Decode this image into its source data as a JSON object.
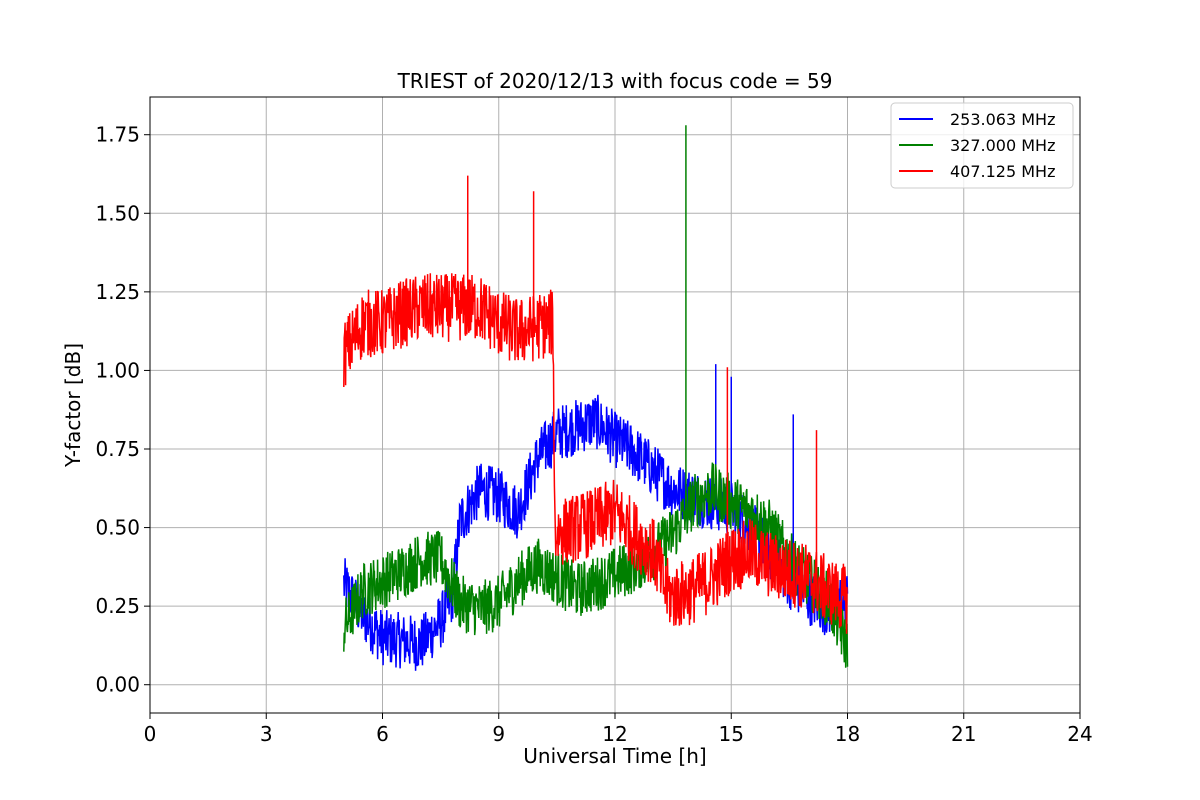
{
  "chart_data": {
    "type": "line",
    "title": "TRIEST of 2020/12/13 with focus code = 59",
    "xlabel": "Universal Time [h]",
    "ylabel": "Y-factor [dB]",
    "xlim": [
      0,
      24
    ],
    "ylim": [
      -0.09,
      1.87
    ],
    "x_ticks": [
      0,
      3,
      6,
      9,
      12,
      15,
      18,
      21,
      24
    ],
    "x_tick_labels": [
      "0",
      "3",
      "6",
      "9",
      "12",
      "15",
      "18",
      "21",
      "24"
    ],
    "y_ticks": [
      0.0,
      0.25,
      0.5,
      0.75,
      1.0,
      1.25,
      1.5,
      1.75
    ],
    "y_tick_labels": [
      "0.00",
      "0.25",
      "0.50",
      "0.75",
      "1.00",
      "1.25",
      "1.50",
      "1.75"
    ],
    "grid": true,
    "legend_position": "top-right",
    "series": [
      {
        "name": "253.063 MHz",
        "color": "#0000ff",
        "x": [
          5.0,
          5.5,
          6.0,
          6.5,
          7.0,
          7.5,
          7.8,
          8.0,
          8.5,
          9.0,
          9.5,
          10.0,
          10.5,
          11.0,
          11.5,
          12.0,
          12.5,
          13.0,
          13.5,
          14.0,
          14.5,
          15.0,
          15.5,
          16.0,
          16.5,
          17.0,
          17.5,
          18.0
        ],
        "y": [
          0.32,
          0.22,
          0.15,
          0.14,
          0.13,
          0.2,
          0.28,
          0.52,
          0.62,
          0.6,
          0.55,
          0.72,
          0.8,
          0.82,
          0.84,
          0.78,
          0.74,
          0.68,
          0.62,
          0.6,
          0.58,
          0.56,
          0.5,
          0.42,
          0.33,
          0.28,
          0.24,
          0.28
        ],
        "noise": 0.09,
        "spikes": [
          [
            14.6,
            1.02
          ],
          [
            15.0,
            0.98
          ],
          [
            16.6,
            0.86
          ]
        ]
      },
      {
        "name": "327.000 MHz",
        "color": "#008000",
        "x": [
          5.0,
          5.5,
          6.0,
          6.5,
          7.0,
          7.5,
          8.0,
          8.5,
          9.0,
          9.5,
          10.0,
          10.5,
          11.0,
          11.5,
          12.0,
          12.5,
          13.0,
          13.5,
          14.0,
          14.5,
          15.0,
          15.5,
          16.0,
          16.5,
          17.0,
          17.5,
          18.0
        ],
        "y": [
          0.18,
          0.3,
          0.33,
          0.36,
          0.4,
          0.4,
          0.26,
          0.24,
          0.26,
          0.33,
          0.38,
          0.34,
          0.3,
          0.32,
          0.35,
          0.38,
          0.42,
          0.48,
          0.58,
          0.62,
          0.58,
          0.55,
          0.5,
          0.4,
          0.33,
          0.27,
          0.12
        ],
        "noise": 0.09,
        "spikes": [
          [
            13.83,
            1.78
          ]
        ]
      },
      {
        "name": "407.125 MHz",
        "color": "#ff0000",
        "x": [
          5.0,
          5.5,
          6.0,
          6.5,
          7.0,
          7.5,
          8.0,
          8.5,
          9.0,
          9.5,
          10.0,
          10.4,
          10.45,
          11.0,
          11.5,
          12.0,
          12.5,
          13.0,
          13.3,
          13.5,
          14.0,
          14.5,
          15.0,
          15.5,
          16.0,
          16.5,
          17.0,
          17.5,
          18.0
        ],
        "y": [
          1.05,
          1.15,
          1.15,
          1.18,
          1.2,
          1.2,
          1.2,
          1.2,
          1.15,
          1.12,
          1.14,
          1.15,
          0.48,
          0.5,
          0.52,
          0.55,
          0.48,
          0.42,
          0.3,
          0.28,
          0.3,
          0.34,
          0.4,
          0.42,
          0.38,
          0.36,
          0.34,
          0.3,
          0.27
        ],
        "noise": 0.11,
        "spikes": [
          [
            8.2,
            1.62
          ],
          [
            9.9,
            1.57
          ],
          [
            14.9,
            1.01
          ],
          [
            17.2,
            0.81
          ]
        ]
      }
    ]
  }
}
